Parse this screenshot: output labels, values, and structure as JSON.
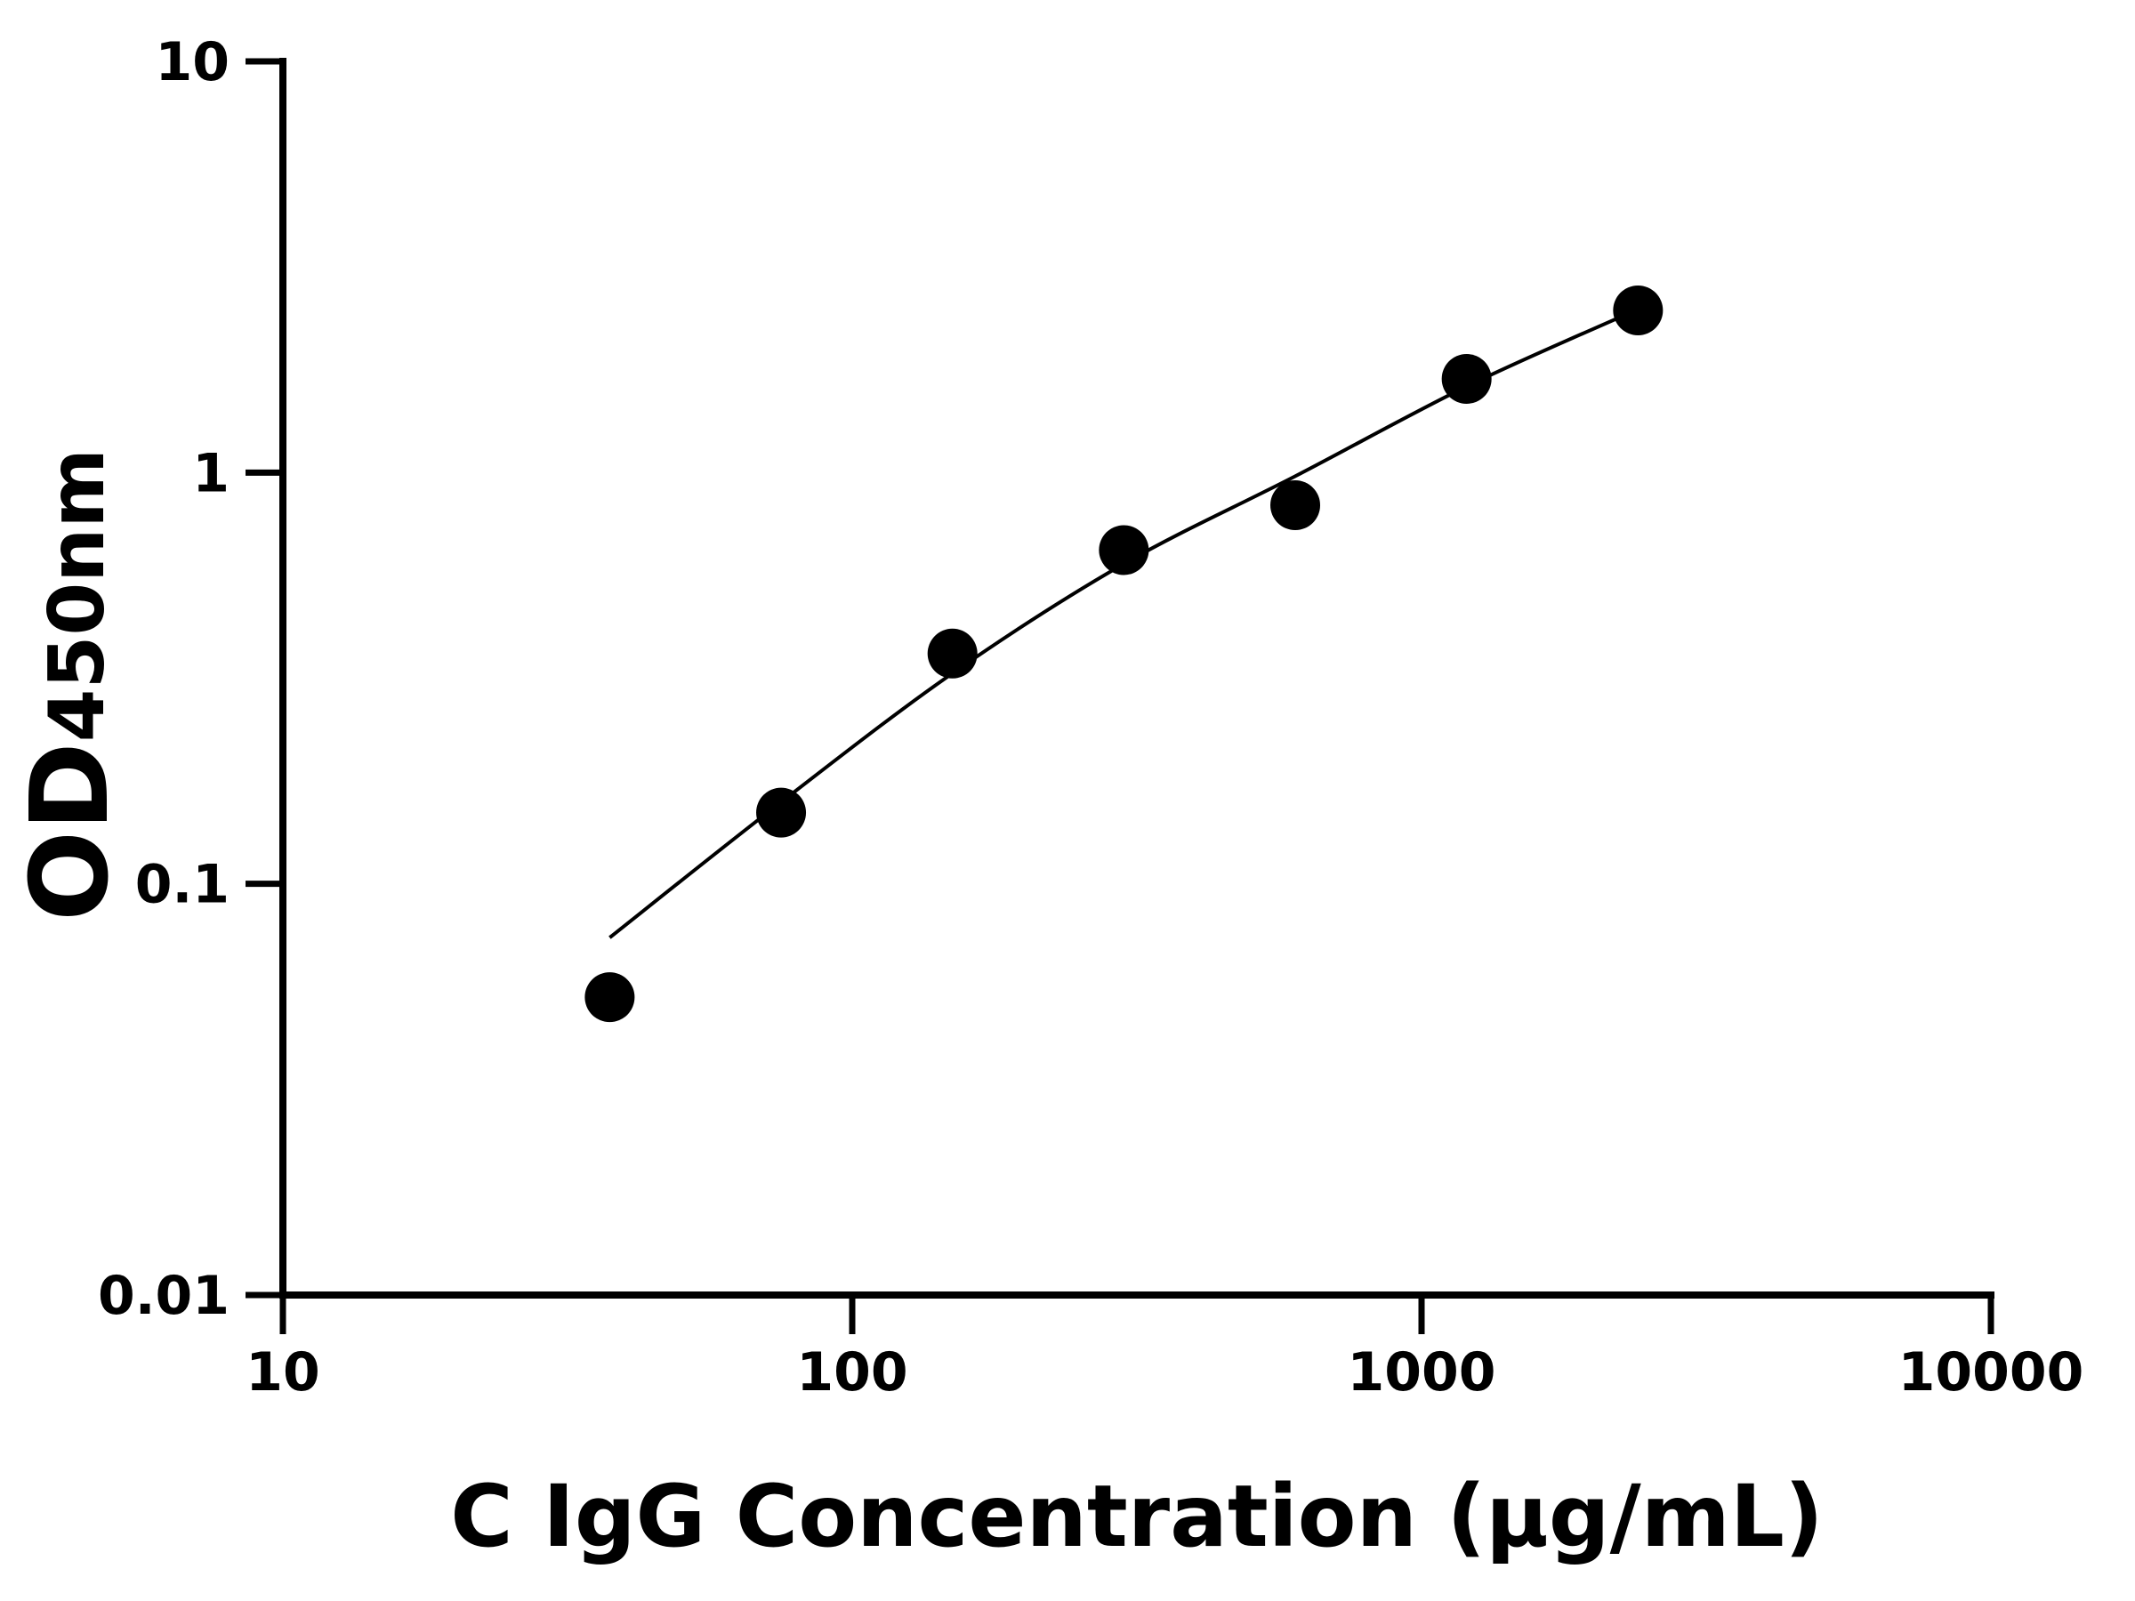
{
  "chart_data": {
    "type": "scatter",
    "title": "",
    "xlabel": "C IgG Concentration (μg/mL)",
    "ylabel": "OD",
    "ylabel_subscript": "450nm",
    "xscale": "log",
    "yscale": "log",
    "xlim": [
      10,
      10000
    ],
    "ylim": [
      0.01,
      10
    ],
    "xticks": [
      "10",
      "100",
      "1000",
      "10000"
    ],
    "yticks": [
      "0.01",
      "0.1",
      "1",
      "10"
    ],
    "grid": false,
    "legend": "none",
    "colors": {
      "points": "#000000",
      "curve": "#000000"
    },
    "series": [
      {
        "points": [
          {
            "x": 37.5,
            "y": 0.053
          },
          {
            "x": 75,
            "y": 0.149
          },
          {
            "x": 150,
            "y": 0.363
          },
          {
            "x": 300,
            "y": 0.648
          },
          {
            "x": 600,
            "y": 0.833
          },
          {
            "x": 1200,
            "y": 1.69
          },
          {
            "x": 2400,
            "y": 2.48
          }
        ]
      }
    ],
    "fit_curve": [
      {
        "x": 37.5,
        "y": 0.074
      },
      {
        "x": 75,
        "y": 0.158
      },
      {
        "x": 150,
        "y": 0.325
      },
      {
        "x": 300,
        "y": 0.6
      },
      {
        "x": 600,
        "y": 0.98
      },
      {
        "x": 1200,
        "y": 1.62
      },
      {
        "x": 2250,
        "y": 2.4
      }
    ]
  }
}
